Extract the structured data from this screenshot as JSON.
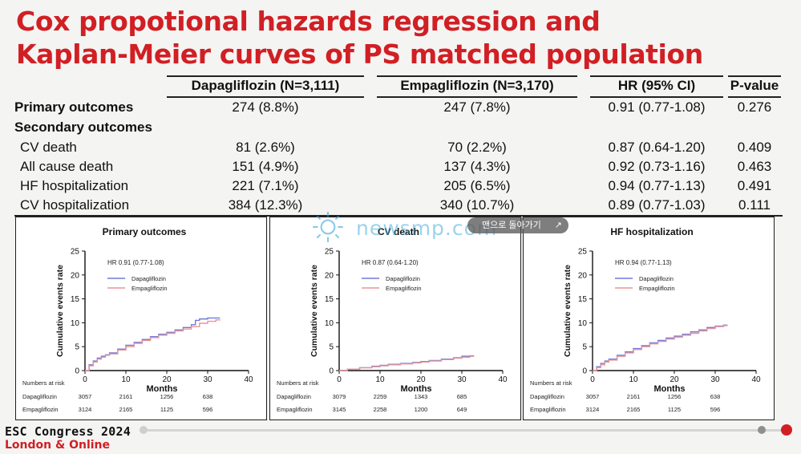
{
  "title_line1": "Cox propotional hazards regression and",
  "title_line2": "Kaplan-Meier curves of PS matched population",
  "table": {
    "headers": [
      "Dapagliflozin (N=3,111)",
      "Empagliflozin (N=3,170)",
      "HR (95% CI)",
      "P-value"
    ],
    "rows": [
      {
        "label": "Primary outcomes",
        "bold": true,
        "dapa": "274 (8.8%)",
        "empa": "247 (7.8%)",
        "hr": "0.91 (0.77-1.08)",
        "p": "0.276"
      },
      {
        "label": "Secondary outcomes",
        "bold": true,
        "dapa": "",
        "empa": "",
        "hr": "",
        "p": ""
      },
      {
        "label": "CV death",
        "bold": false,
        "dapa": "81 (2.6%)",
        "empa": "70 (2.2%)",
        "hr": "0.87 (0.64-1.20)",
        "p": "0.409"
      },
      {
        "label": "All cause death",
        "bold": false,
        "dapa": "151 (4.9%)",
        "empa": "137 (4.3%)",
        "hr": "0.92 (0.73-1.16)",
        "p": "0.463"
      },
      {
        "label": "HF hospitalization",
        "bold": false,
        "dapa": "221 (7.1%)",
        "empa": "205 (6.5%)",
        "hr": "0.94 (0.77-1.13)",
        "p": "0.491"
      },
      {
        "label": "CV hospitalization",
        "bold": false,
        "dapa": "384 (12.3%)",
        "empa": "340 (10.7%)",
        "hr": "0.89 (0.77-1.03)",
        "p": "0.111"
      }
    ]
  },
  "chart_data": [
    {
      "type": "line",
      "title": "Primary outcomes",
      "xlabel": "Months",
      "ylabel": "Cumulative events rate",
      "xlim": [
        0,
        40
      ],
      "ylim": [
        0,
        25
      ],
      "xticks": [
        0,
        10,
        20,
        30,
        40
      ],
      "yticks": [
        0,
        5,
        10,
        15,
        20,
        25
      ],
      "annotation": "HR 0.91 (0.77-1.08)",
      "legend_position": "top-left",
      "series": [
        {
          "name": "Dapagliflozin",
          "color": "#6f7ad8",
          "x": [
            0,
            1,
            2,
            3,
            4,
            5,
            6,
            8,
            10,
            12,
            14,
            16,
            18,
            20,
            22,
            24,
            26,
            27,
            28,
            30,
            32,
            33
          ],
          "y": [
            0,
            1.2,
            2.0,
            2.6,
            3.0,
            3.3,
            3.7,
            4.5,
            5.3,
            5.9,
            6.5,
            7.1,
            7.6,
            8.0,
            8.5,
            9.0,
            9.6,
            10.5,
            10.8,
            11.0,
            11.0,
            11.0
          ]
        },
        {
          "name": "Empagliflozin",
          "color": "#e6959a",
          "x": [
            0,
            1,
            2,
            3,
            4,
            5,
            6,
            8,
            10,
            12,
            14,
            16,
            18,
            20,
            22,
            24,
            26,
            28,
            30,
            32,
            33
          ],
          "y": [
            0,
            1.0,
            1.8,
            2.4,
            2.8,
            3.2,
            3.5,
            4.3,
            5.0,
            5.7,
            6.3,
            6.9,
            7.4,
            7.8,
            8.3,
            8.7,
            9.2,
            9.9,
            10.3,
            10.6,
            10.7
          ]
        }
      ],
      "risk_table": {
        "heading": "Numbers at risk",
        "rows": [
          {
            "label": "Dapagliflozin",
            "values": [
              "3057",
              "2161",
              "1256",
              "638"
            ]
          },
          {
            "label": "Empagliflozin",
            "values": [
              "3124",
              "2165",
              "1125",
              "596"
            ]
          }
        ]
      }
    },
    {
      "type": "line",
      "title": "CV death",
      "xlabel": "Months",
      "ylabel": "Cumulative events rate",
      "xlim": [
        0,
        40
      ],
      "ylim": [
        0,
        25
      ],
      "xticks": [
        0,
        10,
        20,
        30,
        40
      ],
      "yticks": [
        0,
        5,
        10,
        15,
        20,
        25
      ],
      "annotation": "HR 0.87 (0.64-1.20)",
      "legend_position": "top-left",
      "series": [
        {
          "name": "Dapagliflozin",
          "color": "#6f7ad8",
          "x": [
            0,
            2,
            5,
            8,
            10,
            12,
            15,
            18,
            20,
            22,
            25,
            28,
            30,
            32,
            33
          ],
          "y": [
            0,
            0.3,
            0.6,
            0.9,
            1.1,
            1.3,
            1.5,
            1.7,
            1.9,
            2.1,
            2.4,
            2.7,
            3.0,
            3.1,
            3.1
          ]
        },
        {
          "name": "Empagliflozin",
          "color": "#e6959a",
          "x": [
            0,
            2,
            5,
            8,
            10,
            12,
            15,
            18,
            20,
            22,
            25,
            28,
            30,
            32,
            33
          ],
          "y": [
            0,
            0.3,
            0.6,
            0.8,
            1.0,
            1.2,
            1.4,
            1.6,
            1.8,
            2.0,
            2.3,
            2.6,
            2.8,
            3.0,
            3.0
          ]
        }
      ],
      "risk_table": {
        "heading": "Numbers at risk",
        "rows": [
          {
            "label": "Dapagliflozin",
            "values": [
              "3079",
              "2259",
              "1343",
              "685"
            ]
          },
          {
            "label": "Empagliflozin",
            "values": [
              "3145",
              "2258",
              "1200",
              "649"
            ]
          }
        ]
      }
    },
    {
      "type": "line",
      "title": "HF hospitalization",
      "xlabel": "Months",
      "ylabel": "Cumulative events rate",
      "xlim": [
        0,
        40
      ],
      "ylim": [
        0,
        25
      ],
      "xticks": [
        0,
        10,
        20,
        30,
        40
      ],
      "yticks": [
        0,
        5,
        10,
        15,
        20,
        25
      ],
      "annotation": "HR 0.94 (0.77-1.13)",
      "legend_position": "top-left",
      "series": [
        {
          "name": "Dapagliflozin",
          "color": "#6f7ad8",
          "x": [
            0,
            1,
            2,
            3,
            4,
            6,
            8,
            10,
            12,
            14,
            16,
            18,
            20,
            22,
            24,
            26,
            28,
            30,
            32,
            33
          ],
          "y": [
            0,
            0.8,
            1.5,
            2.0,
            2.4,
            3.2,
            3.9,
            4.6,
            5.2,
            5.8,
            6.3,
            6.8,
            7.2,
            7.6,
            8.1,
            8.5,
            9.0,
            9.3,
            9.5,
            9.5
          ]
        },
        {
          "name": "Empagliflozin",
          "color": "#e6959a",
          "x": [
            0,
            1,
            2,
            3,
            4,
            6,
            8,
            10,
            12,
            14,
            16,
            18,
            20,
            22,
            24,
            26,
            28,
            30,
            32,
            33
          ],
          "y": [
            0,
            0.6,
            1.2,
            1.8,
            2.2,
            3.0,
            3.7,
            4.4,
            5.0,
            5.6,
            6.1,
            6.6,
            7.0,
            7.4,
            7.8,
            8.3,
            8.8,
            9.2,
            9.4,
            9.4
          ]
        }
      ],
      "risk_table": {
        "heading": "Numbers at risk",
        "rows": [
          {
            "label": "Dapagliflozin",
            "values": [
              "3057",
              "2161",
              "1256",
              "638"
            ]
          },
          {
            "label": "Empagliflozin",
            "values": [
              "3124",
              "2165",
              "1125",
              "596"
            ]
          }
        ]
      }
    }
  ],
  "watermark": "newsmp.com",
  "overlay_button": {
    "label": "맨으로 돌아가기",
    "icon": "external-link-icon"
  },
  "footer": {
    "line1": "ESC Congress 2024",
    "line2": "London & Online",
    "accent_color": "#d11f24"
  }
}
